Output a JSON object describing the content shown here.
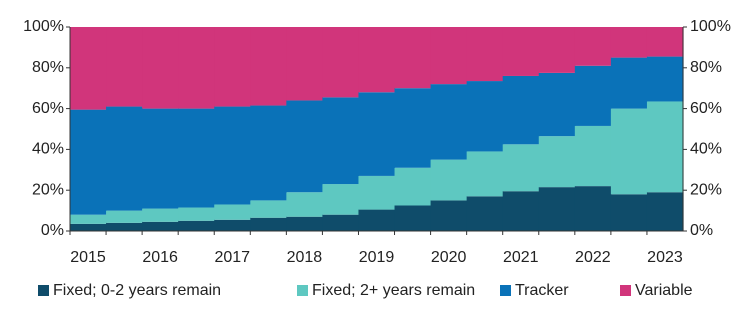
{
  "chart_data": {
    "type": "stacked-step-area",
    "categories": [
      "2015",
      null,
      "2016",
      null,
      "2017",
      null,
      "2018",
      null,
      "2019",
      null,
      "2020",
      null,
      "2021",
      null,
      "2022",
      null,
      "2023"
    ],
    "series": [
      {
        "name": "Fixed; 0-2 years remain",
        "color": "#0f4c6a",
        "values": [
          3.5,
          4,
          4.5,
          5,
          5.5,
          6.5,
          7,
          8,
          10.5,
          12.5,
          15,
          17,
          19.5,
          21.5,
          22,
          18,
          19
        ]
      },
      {
        "name": "Fixed; 2+ years remain",
        "color": "#5ec8c1",
        "values": [
          4.5,
          6,
          6.5,
          6.5,
          7.5,
          8.5,
          12,
          15,
          16.5,
          18.5,
          20,
          22,
          23,
          25,
          29.5,
          42,
          44.5
        ]
      },
      {
        "name": "Tracker",
        "color": "#0a72b8",
        "values": [
          51.5,
          51,
          49,
          48.5,
          48,
          46.5,
          45,
          42.5,
          41,
          39,
          37,
          34.5,
          33.5,
          31,
          29.5,
          25,
          22
        ]
      },
      {
        "name": "Variable",
        "color": "#d1357b",
        "values": [
          40.5,
          39,
          40,
          40,
          39,
          38.5,
          36,
          34.5,
          32,
          30,
          28,
          26.5,
          24,
          22.5,
          19,
          15,
          14.5
        ]
      }
    ],
    "ylim": [
      0,
      100
    ],
    "yticks": [
      {
        "value": 0,
        "label": "0%"
      },
      {
        "value": 20,
        "label": "20%"
      },
      {
        "value": 40,
        "label": "40%"
      },
      {
        "value": 60,
        "label": "60%"
      },
      {
        "value": 80,
        "label": "80%"
      },
      {
        "value": 100,
        "label": "100%"
      }
    ],
    "y2lim": [
      0,
      100
    ],
    "y2ticks": [
      {
        "value": 0,
        "label": "0%"
      },
      {
        "value": 20,
        "label": "20%"
      },
      {
        "value": 40,
        "label": "40%"
      },
      {
        "value": 60,
        "label": "60%"
      },
      {
        "value": 80,
        "label": "80%"
      },
      {
        "value": 100,
        "label": "100%"
      }
    ],
    "legend": "bottom"
  }
}
